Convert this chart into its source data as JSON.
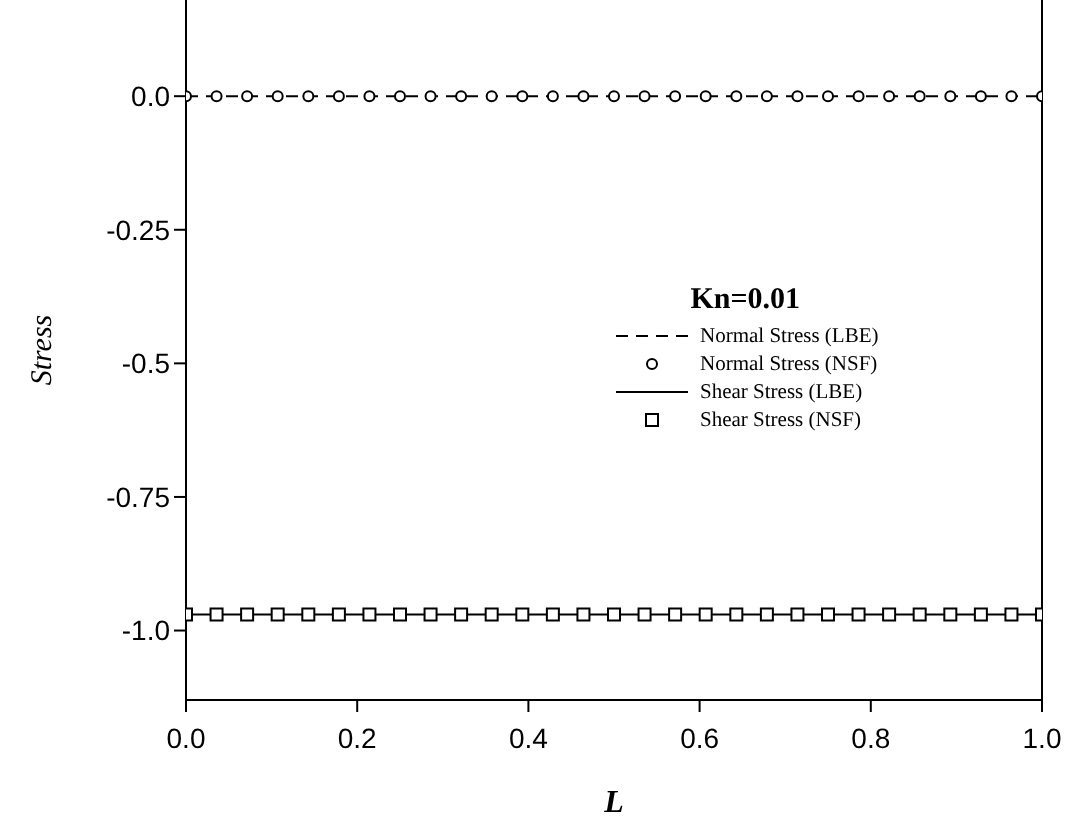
{
  "chart_data": {
    "type": "line",
    "xlabel": "L",
    "ylabel": "Stress",
    "legend_title": "Kn=0.01",
    "xlim": [
      0,
      1
    ],
    "xticks": [
      {
        "value": 0,
        "label": "0.0"
      },
      0.2,
      0.4,
      0.6,
      0.8,
      {
        "value": 1,
        "label": "1.0"
      }
    ],
    "ylim": [
      -1.13,
      0.18
    ],
    "yticks": [
      {
        "value": 0,
        "label": "0.0"
      },
      -0.25,
      -0.5,
      -0.75,
      {
        "value": -1,
        "label": "-1.0"
      }
    ],
    "grid": false,
    "legend": "right",
    "series": [
      {
        "name": "Normal Stress (LBE)",
        "line_style": "dashed",
        "marker": "none",
        "color": "#000000",
        "x": [
          0,
          1
        ],
        "values": [
          0,
          0
        ]
      },
      {
        "name": "Normal Stress (NSF)",
        "type": "scatter",
        "marker": "circle",
        "color": "#000000",
        "x": [
          0,
          0.0357,
          0.0714,
          0.1071,
          0.1429,
          0.1786,
          0.2143,
          0.25,
          0.2857,
          0.3214,
          0.3571,
          0.3929,
          0.4286,
          0.4643,
          0.5,
          0.5357,
          0.5714,
          0.6071,
          0.6429,
          0.6786,
          0.7143,
          0.75,
          0.7857,
          0.8214,
          0.8571,
          0.8929,
          0.9286,
          0.9643,
          1
        ],
        "values": [
          0,
          0,
          0,
          0,
          0,
          0,
          0,
          0,
          0,
          0,
          0,
          0,
          0,
          0,
          0,
          0,
          0,
          0,
          0,
          0,
          0,
          0,
          0,
          0,
          0,
          0,
          0,
          0,
          0
        ]
      },
      {
        "name": "Shear Stress (LBE)",
        "line_style": "solid",
        "marker": "none",
        "color": "#000000",
        "x": [
          0,
          1
        ],
        "values": [
          -0.97,
          -0.97
        ]
      },
      {
        "name": "Shear Stress (NSF)",
        "type": "scatter",
        "marker": "square",
        "color": "#000000",
        "x": [
          0,
          0.0357,
          0.0714,
          0.1071,
          0.1429,
          0.1786,
          0.2143,
          0.25,
          0.2857,
          0.3214,
          0.3571,
          0.3929,
          0.4286,
          0.4643,
          0.5,
          0.5357,
          0.5714,
          0.6071,
          0.6429,
          0.6786,
          0.7143,
          0.75,
          0.7857,
          0.8214,
          0.8571,
          0.8929,
          0.9286,
          0.9643,
          1
        ],
        "values": [
          -0.97,
          -0.97,
          -0.97,
          -0.97,
          -0.97,
          -0.97,
          -0.97,
          -0.97,
          -0.97,
          -0.97,
          -0.97,
          -0.97,
          -0.97,
          -0.97,
          -0.97,
          -0.97,
          -0.97,
          -0.97,
          -0.97,
          -0.97,
          -0.97,
          -0.97,
          -0.97,
          -0.97,
          -0.97,
          -0.97,
          -0.97,
          -0.97,
          -0.97
        ]
      }
    ]
  }
}
